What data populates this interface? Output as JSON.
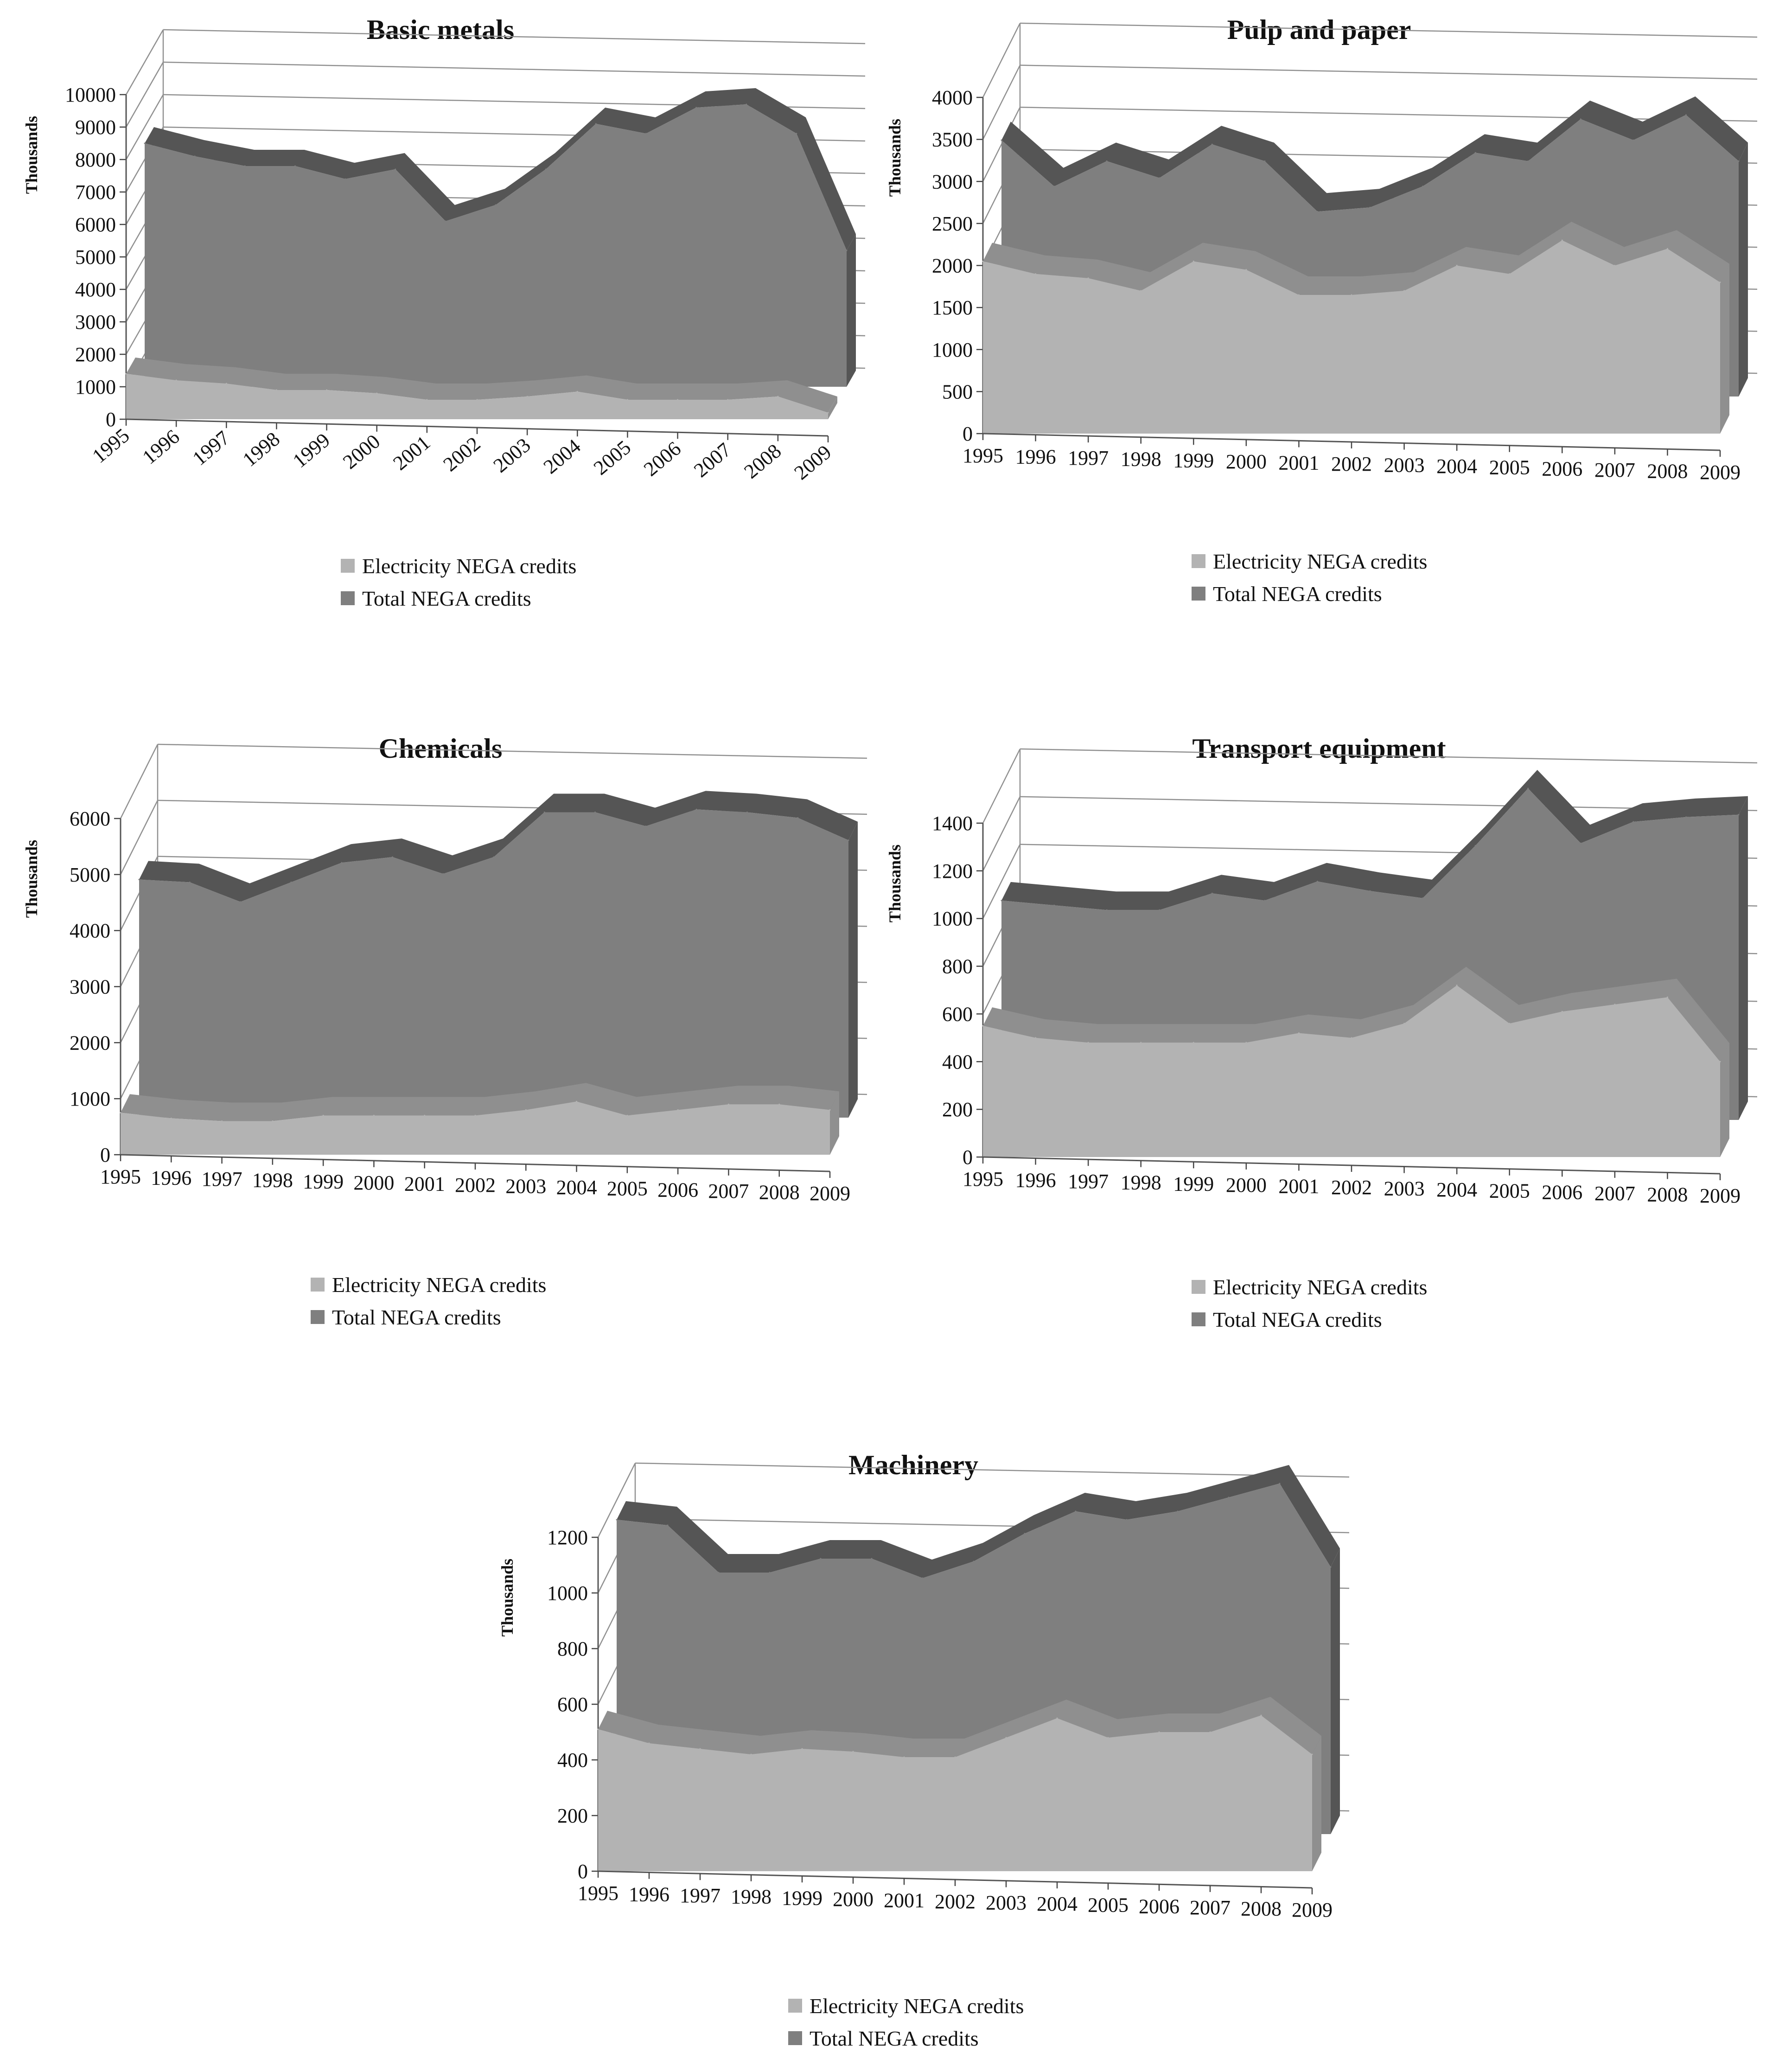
{
  "charts": [
    {
      "type": "area",
      "title": "Basic metals",
      "ylabel": "Thousands",
      "xlabel": "",
      "ylim": [
        0,
        10000
      ],
      "yticks": [
        0,
        1000,
        2000,
        3000,
        4000,
        5000,
        6000,
        7000,
        8000,
        9000,
        10000
      ],
      "tick_labels": [
        "0",
        "1000",
        "2000",
        "3000",
        "4000",
        "5000",
        "6000",
        "7000",
        "8000",
        "9000",
        "10000"
      ],
      "categories": [
        "1995",
        "1996",
        "1997",
        "1998",
        "1999",
        "2000",
        "2001",
        "2002",
        "2003",
        "2004",
        "2005",
        "2006",
        "2007",
        "2008",
        "2009"
      ],
      "series": [
        {
          "name": "Electricity NEGA credits",
          "values": [
            1400,
            1200,
            1100,
            900,
            900,
            800,
            600,
            600,
            700,
            850,
            600,
            600,
            600,
            700,
            200
          ]
        },
        {
          "name": "Total NEGA credits",
          "values": [
            7500,
            7100,
            6800,
            6800,
            6400,
            6700,
            5100,
            5600,
            6700,
            8100,
            7800,
            8600,
            8700,
            7800,
            4200
          ]
        }
      ]
    },
    {
      "type": "area",
      "title": "Pulp and paper",
      "ylabel": "Thousands",
      "xlabel": "",
      "ylim": [
        0,
        4000
      ],
      "yticks": [
        0,
        500,
        1000,
        1500,
        2000,
        2500,
        3000,
        3500,
        4000
      ],
      "tick_labels": [
        "0",
        "500",
        "1000",
        "1500",
        "2000",
        "2500",
        "3000",
        "3500",
        "4000"
      ],
      "categories": [
        "1995",
        "1996",
        "1997",
        "1998",
        "1999",
        "2000",
        "2001",
        "2002",
        "2003",
        "2004",
        "2005",
        "2006",
        "2007",
        "2008",
        "2009"
      ],
      "series": [
        {
          "name": "Electricity NEGA credits",
          "values": [
            2050,
            1900,
            1850,
            1700,
            2050,
            1950,
            1650,
            1650,
            1700,
            2000,
            1900,
            2300,
            2000,
            2200,
            1800
          ]
        },
        {
          "name": "Total NEGA credits",
          "values": [
            3050,
            2500,
            2800,
            2600,
            3000,
            2800,
            2200,
            2250,
            2500,
            2900,
            2800,
            3300,
            3050,
            3350,
            2800
          ]
        }
      ]
    },
    {
      "type": "area",
      "title": "Chemicals",
      "ylabel": "Thousands",
      "xlabel": "",
      "ylim": [
        0,
        6000
      ],
      "yticks": [
        0,
        1000,
        2000,
        3000,
        4000,
        5000,
        6000
      ],
      "tick_labels": [
        "0",
        "1000",
        "2000",
        "3000",
        "4000",
        "5000",
        "6000"
      ],
      "categories": [
        "1995",
        "1996",
        "1997",
        "1998",
        "1999",
        "2000",
        "2001",
        "2002",
        "2003",
        "2004",
        "2005",
        "2006",
        "2007",
        "2008",
        "2009"
      ],
      "series": [
        {
          "name": "Electricity NEGA credits",
          "values": [
            750,
            650,
            600,
            600,
            700,
            700,
            700,
            700,
            800,
            950,
            700,
            800,
            900,
            900,
            800
          ]
        },
        {
          "name": "Total NEGA credits",
          "values": [
            4250,
            4200,
            3850,
            4200,
            4550,
            4650,
            4350,
            4650,
            5450,
            5450,
            5200,
            5500,
            5450,
            5350,
            4950
          ]
        }
      ]
    },
    {
      "type": "area",
      "title": "Transport equipment",
      "ylabel": "Thousands",
      "xlabel": "",
      "ylim": [
        0,
        1400
      ],
      "yticks": [
        0,
        200,
        400,
        600,
        800,
        1000,
        1200,
        1400
      ],
      "tick_labels": [
        "0",
        "200",
        "400",
        "600",
        "800",
        "1000",
        "1200",
        "1400"
      ],
      "categories": [
        "1995",
        "1996",
        "1997",
        "1998",
        "1999",
        "2000",
        "2001",
        "2002",
        "2003",
        "2004",
        "2005",
        "2006",
        "2007",
        "2008",
        "2009"
      ],
      "series": [
        {
          "name": "Electricity NEGA credits",
          "values": [
            550,
            500,
            480,
            480,
            480,
            480,
            520,
            500,
            560,
            720,
            560,
            610,
            640,
            670,
            400
          ]
        },
        {
          "name": "Total NEGA credits",
          "values": [
            920,
            900,
            880,
            880,
            950,
            920,
            1000,
            960,
            930,
            1150,
            1390,
            1160,
            1250,
            1270,
            1280
          ]
        }
      ]
    },
    {
      "type": "area",
      "title": "Machinery",
      "ylabel": "Thousands",
      "xlabel": "",
      "ylim": [
        0,
        1200
      ],
      "yticks": [
        0,
        200,
        400,
        600,
        800,
        1000,
        1200
      ],
      "tick_labels": [
        "0",
        "200",
        "400",
        "600",
        "800",
        "1000",
        "1200"
      ],
      "categories": [
        "1995",
        "1996",
        "1997",
        "1998",
        "1999",
        "2000",
        "2001",
        "2002",
        "2003",
        "2004",
        "2005",
        "2006",
        "2007",
        "2008",
        "2009"
      ],
      "series": [
        {
          "name": "Electricity NEGA credits",
          "values": [
            510,
            460,
            440,
            420,
            440,
            430,
            410,
            410,
            480,
            550,
            480,
            500,
            500,
            560,
            420
          ]
        },
        {
          "name": "Total NEGA credits",
          "values": [
            1130,
            1110,
            940,
            940,
            990,
            990,
            920,
            980,
            1080,
            1160,
            1130,
            1160,
            1210,
            1260,
            960
          ]
        }
      ]
    }
  ],
  "colors": {
    "electricity": "#b3b3b3",
    "electricity_side": "#8f8f8f",
    "total": "#7f7f7f",
    "total_side": "#555555",
    "grid": "#909090"
  }
}
